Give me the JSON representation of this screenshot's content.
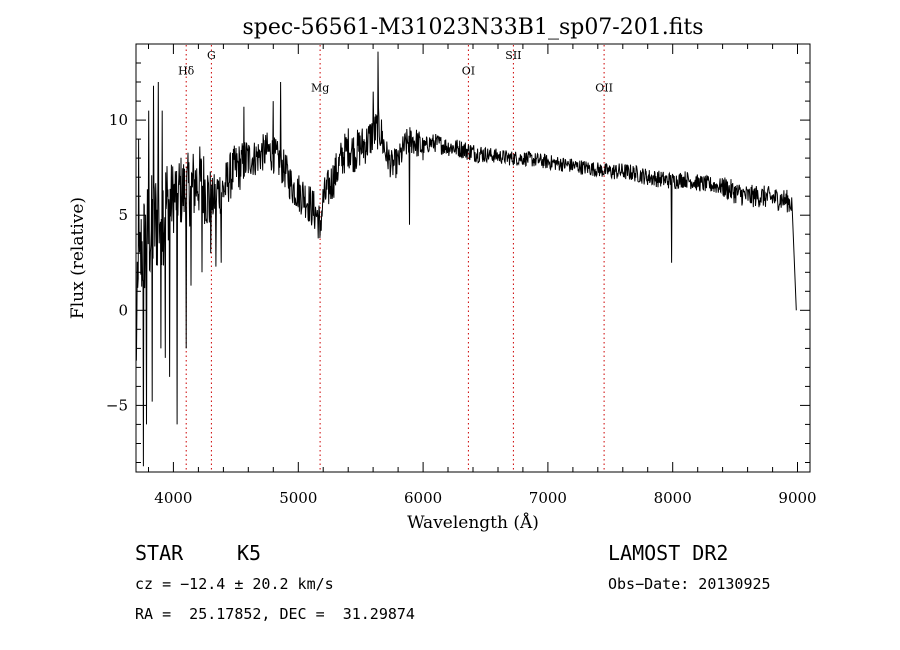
{
  "chart_data": {
    "type": "line",
    "title": "spec-56561-M31023N33B1_sp07-201.fits",
    "xlabel": "Wavelength (Å)",
    "ylabel": "Flux (relative)",
    "xlim": [
      3700,
      9100
    ],
    "ylim": [
      -8.5,
      14
    ],
    "xticks": [
      {
        "value": 4000,
        "label": "4000"
      },
      {
        "value": 5000,
        "label": "5000"
      },
      {
        "value": 6000,
        "label": "6000"
      },
      {
        "value": 7000,
        "label": "7000"
      },
      {
        "value": 8000,
        "label": "8000"
      },
      {
        "value": 9000,
        "label": "9000"
      }
    ],
    "yticks": [
      {
        "value": -5,
        "label": "−5"
      },
      {
        "value": 0,
        "label": "0"
      },
      {
        "value": 5,
        "label": "5"
      },
      {
        "value": 10,
        "label": "10"
      }
    ],
    "line_color": "#000000",
    "marker_color": "#cc0000",
    "grid": false,
    "lines": [
      {
        "label": "Hδ",
        "wavelength": 4102,
        "label_y": 12.4
      },
      {
        "label": "G",
        "wavelength": 4304,
        "label_y": 13.2
      },
      {
        "label": "Mg",
        "wavelength": 5175,
        "label_y": 11.5
      },
      {
        "label": "OI",
        "wavelength": 6363,
        "label_y": 12.4
      },
      {
        "label": "SII",
        "wavelength": 6724,
        "label_y": 13.2
      },
      {
        "label": "OII",
        "wavelength": 7450,
        "label_y": 11.5
      }
    ],
    "anchors": [
      [
        3700,
        -2.0
      ],
      [
        3720,
        1.0
      ],
      [
        3740,
        3.0
      ],
      [
        3770,
        3.5
      ],
      [
        3800,
        4.0
      ],
      [
        3850,
        4.5
      ],
      [
        3900,
        5.2
      ],
      [
        3950,
        5.5
      ],
      [
        4000,
        6.0
      ],
      [
        4050,
        6.3
      ],
      [
        4100,
        6.2
      ],
      [
        4150,
        6.5
      ],
      [
        4200,
        6.8
      ],
      [
        4250,
        6.5
      ],
      [
        4300,
        5.5
      ],
      [
        4350,
        6.3
      ],
      [
        4400,
        6.3
      ],
      [
        4450,
        7.0
      ],
      [
        4500,
        7.5
      ],
      [
        4550,
        7.6
      ],
      [
        4600,
        8.0
      ],
      [
        4650,
        8.0
      ],
      [
        4700,
        8.2
      ],
      [
        4750,
        8.4
      ],
      [
        4800,
        8.2
      ],
      [
        4850,
        7.8
      ],
      [
        4900,
        7.3
      ],
      [
        4950,
        6.5
      ],
      [
        5000,
        6.2
      ],
      [
        5050,
        6.0
      ],
      [
        5100,
        5.5
      ],
      [
        5150,
        5.0
      ],
      [
        5175,
        4.5
      ],
      [
        5200,
        5.8
      ],
      [
        5250,
        6.5
      ],
      [
        5300,
        7.2
      ],
      [
        5350,
        8.0
      ],
      [
        5400,
        8.6
      ],
      [
        5450,
        8.3
      ],
      [
        5500,
        8.6
      ],
      [
        5550,
        8.8
      ],
      [
        5600,
        9.3
      ],
      [
        5650,
        9.6
      ],
      [
        5700,
        8.3
      ],
      [
        5750,
        7.6
      ],
      [
        5800,
        7.8
      ],
      [
        5850,
        8.6
      ],
      [
        5900,
        9.0
      ],
      [
        5950,
        8.8
      ],
      [
        6000,
        8.5
      ],
      [
        6050,
        8.8
      ],
      [
        6100,
        8.8
      ],
      [
        6200,
        8.6
      ],
      [
        6300,
        8.5
      ],
      [
        6400,
        8.3
      ],
      [
        6500,
        8.2
      ],
      [
        6600,
        8.1
      ],
      [
        6700,
        8.0
      ],
      [
        6800,
        8.0
      ],
      [
        6900,
        7.9
      ],
      [
        7000,
        7.8
      ],
      [
        7100,
        7.7
      ],
      [
        7200,
        7.6
      ],
      [
        7300,
        7.5
      ],
      [
        7400,
        7.4
      ],
      [
        7500,
        7.3
      ],
      [
        7600,
        7.3
      ],
      [
        7700,
        7.2
      ],
      [
        7800,
        7.0
      ],
      [
        7900,
        6.9
      ],
      [
        8000,
        6.8
      ],
      [
        8100,
        6.9
      ],
      [
        8200,
        6.7
      ],
      [
        8300,
        6.6
      ],
      [
        8400,
        6.5
      ],
      [
        8500,
        6.2
      ],
      [
        8600,
        6.0
      ],
      [
        8700,
        6.0
      ],
      [
        8800,
        5.9
      ],
      [
        8900,
        5.8
      ],
      [
        8960,
        5.6
      ],
      [
        8990,
        0.0
      ]
    ],
    "absorption_dips": [
      {
        "wavelength": 3758,
        "flux": -8.2
      },
      {
        "wavelength": 3785,
        "flux": -6.0
      },
      {
        "wavelength": 3830,
        "flux": -4.8
      },
      {
        "wavelength": 3900,
        "flux": -2.0
      },
      {
        "wavelength": 3935,
        "flux": -2.5
      },
      {
        "wavelength": 3968,
        "flux": -3.5
      },
      {
        "wavelength": 4030,
        "flux": -6.0
      },
      {
        "wavelength": 4102,
        "flux": -2.0
      },
      {
        "wavelength": 4140,
        "flux": 1.3
      },
      {
        "wavelength": 4227,
        "flux": 2.0
      },
      {
        "wavelength": 4300,
        "flux": 3.0
      },
      {
        "wavelength": 4340,
        "flux": 2.3
      },
      {
        "wavelength": 4383,
        "flux": 2.5
      },
      {
        "wavelength": 5175,
        "flux": 3.8
      },
      {
        "wavelength": 5890,
        "flux": 4.5
      },
      {
        "wavelength": 7990,
        "flux": 2.5
      }
    ],
    "emission_spikes": [
      {
        "wavelength": 3720,
        "flux": 9.0
      },
      {
        "wavelength": 3800,
        "flux": 10.5
      },
      {
        "wavelength": 3840,
        "flux": 11.8
      },
      {
        "wavelength": 3880,
        "flux": 12.0
      },
      {
        "wavelength": 3910,
        "flux": 10.5
      },
      {
        "wavelength": 4565,
        "flux": 10.7
      },
      {
        "wavelength": 4800,
        "flux": 11.0
      },
      {
        "wavelength": 4860,
        "flux": 12.0
      },
      {
        "wavelength": 5600,
        "flux": 11.5
      },
      {
        "wavelength": 5640,
        "flux": 13.6
      }
    ]
  },
  "info": {
    "object_class": "STAR",
    "subclass": "K5",
    "redshift": "cz = −12.4 ± 20.2 km/s",
    "coords": "RA =  25.17852, DEC =  31.29874",
    "survey": "LAMOST DR2",
    "obs_date": "Obs−Date: 20130925"
  }
}
